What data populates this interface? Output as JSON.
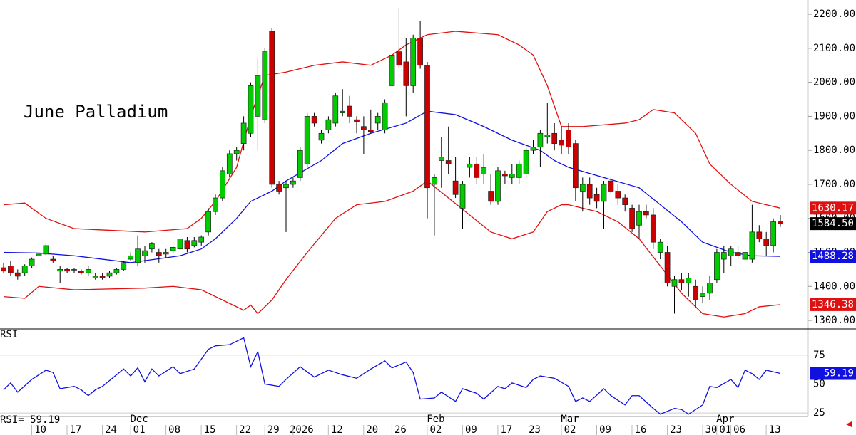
{
  "chart_data": [
    {
      "type": "candlestick",
      "title": "June Palladium",
      "ylim": [
        1275,
        2242
      ],
      "yticks": [
        {
          "value": 1300,
          "label": "1300.00"
        },
        {
          "value": 1400,
          "label": "1400.00"
        },
        {
          "value": 1500,
          "label": "1500.00"
        },
        {
          "value": 1600,
          "label": "1600.00"
        },
        {
          "value": 1700,
          "label": "1700.00"
        },
        {
          "value": 1800,
          "label": "1800.00"
        },
        {
          "value": 1900,
          "label": "1900.00"
        },
        {
          "value": 2000,
          "label": "2000.00"
        },
        {
          "value": 2100,
          "label": "2100.00"
        },
        {
          "value": 2200,
          "label": "2200.00"
        }
      ],
      "up_color": "#00cc00",
      "down_color": "#cc0000",
      "candles": [
        [
          1455,
          1470,
          1440,
          1445
        ],
        [
          1460,
          1475,
          1430,
          1440
        ],
        [
          1440,
          1450,
          1420,
          1430
        ],
        [
          1440,
          1465,
          1430,
          1460
        ],
        [
          1460,
          1485,
          1455,
          1480
        ],
        [
          1490,
          1500,
          1480,
          1495
        ],
        [
          1495,
          1525,
          1490,
          1520
        ],
        [
          1480,
          1490,
          1470,
          1475
        ],
        [
          1445,
          1460,
          1410,
          1450
        ],
        [
          1450,
          1455,
          1440,
          1445
        ],
        [
          1448,
          1455,
          1440,
          1450
        ],
        [
          1445,
          1450,
          1435,
          1440
        ],
        [
          1440,
          1460,
          1430,
          1450
        ],
        [
          1425,
          1440,
          1420,
          1430
        ],
        [
          1430,
          1440,
          1420,
          1425
        ],
        [
          1430,
          1445,
          1425,
          1440
        ],
        [
          1440,
          1455,
          1435,
          1450
        ],
        [
          1450,
          1475,
          1445,
          1470
        ],
        [
          1480,
          1500,
          1475,
          1490
        ],
        [
          1470,
          1550,
          1460,
          1510
        ],
        [
          1490,
          1520,
          1470,
          1505
        ],
        [
          1510,
          1530,
          1500,
          1525
        ],
        [
          1500,
          1510,
          1470,
          1490
        ],
        [
          1495,
          1510,
          1485,
          1500
        ],
        [
          1505,
          1520,
          1495,
          1515
        ],
        [
          1510,
          1545,
          1505,
          1540
        ],
        [
          1535,
          1545,
          1500,
          1510
        ],
        [
          1520,
          1545,
          1515,
          1535
        ],
        [
          1530,
          1550,
          1520,
          1545
        ],
        [
          1560,
          1630,
          1550,
          1620
        ],
        [
          1620,
          1670,
          1610,
          1660
        ],
        [
          1660,
          1750,
          1650,
          1740
        ],
        [
          1730,
          1800,
          1720,
          1790
        ],
        [
          1790,
          1810,
          1770,
          1800
        ],
        [
          1820,
          1900,
          1800,
          1880
        ],
        [
          1850,
          2000,
          1840,
          1990
        ],
        [
          1900,
          2070,
          1800,
          2020
        ],
        [
          1890,
          2100,
          1880,
          2090
        ],
        [
          2150,
          2160,
          1690,
          1700
        ],
        [
          1700,
          1710,
          1670,
          1680
        ],
        [
          1690,
          1710,
          1560,
          1700
        ],
        [
          1700,
          1720,
          1690,
          1710
        ],
        [
          1720,
          1810,
          1710,
          1800
        ],
        [
          1760,
          1910,
          1750,
          1900
        ],
        [
          1900,
          1910,
          1870,
          1880
        ],
        [
          1830,
          1860,
          1820,
          1850
        ],
        [
          1860,
          1900,
          1850,
          1890
        ],
        [
          1880,
          1970,
          1870,
          1960
        ],
        [
          1910,
          1980,
          1900,
          1915
        ],
        [
          1930,
          1960,
          1880,
          1900
        ],
        [
          1890,
          1900,
          1850,
          1885
        ],
        [
          1870,
          1900,
          1790,
          1860
        ],
        [
          1860,
          1920,
          1850,
          1855
        ],
        [
          1880,
          1910,
          1860,
          1900
        ],
        [
          1860,
          1950,
          1850,
          1940
        ],
        [
          1990,
          2090,
          1970,
          2080
        ],
        [
          2090,
          2220,
          2040,
          2050
        ],
        [
          2060,
          2130,
          1900,
          1990
        ],
        [
          1990,
          2140,
          1970,
          2130
        ],
        [
          2130,
          2180,
          2040,
          2050
        ],
        [
          2050,
          2060,
          1600,
          1690
        ],
        [
          1700,
          1730,
          1550,
          1720
        ],
        [
          1770,
          1840,
          1690,
          1780
        ],
        [
          1770,
          1870,
          1730,
          1760
        ],
        [
          1710,
          1780,
          1660,
          1670
        ],
        [
          1630,
          1710,
          1570,
          1700
        ],
        [
          1750,
          1780,
          1720,
          1760
        ],
        [
          1760,
          1780,
          1700,
          1720
        ],
        [
          1730,
          1790,
          1700,
          1750
        ],
        [
          1680,
          1730,
          1640,
          1650
        ],
        [
          1650,
          1750,
          1640,
          1740
        ],
        [
          1730,
          1740,
          1700,
          1725
        ],
        [
          1720,
          1760,
          1700,
          1730
        ],
        [
          1720,
          1770,
          1700,
          1760
        ],
        [
          1730,
          1810,
          1720,
          1800
        ],
        [
          1800,
          1830,
          1790,
          1810
        ],
        [
          1810,
          1860,
          1750,
          1850
        ],
        [
          1840,
          1940,
          1820,
          1845
        ],
        [
          1850,
          1880,
          1800,
          1820
        ],
        [
          1830,
          1870,
          1790,
          1815
        ],
        [
          1860,
          1880,
          1790,
          1810
        ],
        [
          1820,
          1830,
          1650,
          1690
        ],
        [
          1680,
          1720,
          1620,
          1700
        ],
        [
          1700,
          1720,
          1640,
          1660
        ],
        [
          1670,
          1690,
          1630,
          1650
        ],
        [
          1650,
          1710,
          1570,
          1700
        ],
        [
          1710,
          1720,
          1670,
          1680
        ],
        [
          1680,
          1700,
          1640,
          1660
        ],
        [
          1660,
          1670,
          1620,
          1640
        ],
        [
          1630,
          1640,
          1560,
          1570
        ],
        [
          1580,
          1640,
          1540,
          1620
        ],
        [
          1620,
          1640,
          1600,
          1610
        ],
        [
          1610,
          1630,
          1510,
          1530
        ],
        [
          1500,
          1540,
          1480,
          1530
        ],
        [
          1500,
          1520,
          1400,
          1410
        ],
        [
          1400,
          1430,
          1320,
          1420
        ],
        [
          1420,
          1440,
          1390,
          1410
        ],
        [
          1410,
          1440,
          1370,
          1425
        ],
        [
          1400,
          1420,
          1340,
          1360
        ],
        [
          1370,
          1400,
          1350,
          1380
        ],
        [
          1380,
          1430,
          1360,
          1410
        ],
        [
          1420,
          1510,
          1410,
          1500
        ],
        [
          1480,
          1520,
          1440,
          1500
        ],
        [
          1490,
          1520,
          1460,
          1510
        ],
        [
          1500,
          1520,
          1480,
          1490
        ],
        [
          1480,
          1510,
          1440,
          1500
        ],
        [
          1480,
          1640,
          1470,
          1560
        ],
        [
          1560,
          1580,
          1530,
          1540
        ],
        [
          1540,
          1560,
          1490,
          1520
        ],
        [
          1520,
          1600,
          1500,
          1590
        ],
        [
          1590,
          1610,
          1575,
          1584.5
        ]
      ],
      "series": [
        {
          "color": "#e01010",
          "x": [
            0,
            3,
            6,
            10,
            15,
            20,
            26,
            28,
            30,
            33,
            35,
            37,
            40,
            44,
            48,
            52,
            55,
            57,
            60,
            64,
            70,
            73,
            75,
            77,
            79,
            82,
            88,
            90,
            92,
            95,
            98,
            100,
            103,
            106,
            108,
            110
          ],
          "values": [
            1640,
            1645,
            1600,
            1570,
            1565,
            1560,
            1570,
            1600,
            1650,
            1750,
            1900,
            2020,
            2030,
            2050,
            2060,
            2050,
            2080,
            2110,
            2140,
            2150,
            2140,
            2110,
            2080,
            1990,
            1870,
            1870,
            1880,
            1890,
            1920,
            1910,
            1850,
            1760,
            1700,
            1650,
            1640,
            1630.17
          ]
        },
        {
          "color": "#1010e0",
          "x": [
            0,
            5,
            10,
            18,
            25,
            28,
            30,
            33,
            35,
            38,
            40,
            45,
            48,
            52,
            57,
            60,
            64,
            68,
            72,
            76,
            78,
            80,
            85,
            90,
            93,
            96,
            99,
            103,
            106,
            110
          ],
          "values": [
            1500,
            1498,
            1490,
            1470,
            1490,
            1510,
            1540,
            1600,
            1650,
            1680,
            1710,
            1770,
            1820,
            1850,
            1880,
            1915,
            1905,
            1870,
            1830,
            1800,
            1770,
            1750,
            1720,
            1690,
            1640,
            1590,
            1530,
            1500,
            1490,
            1488.28
          ]
        },
        {
          "color": "#e01010",
          "x": [
            0,
            3,
            5,
            10,
            20,
            24,
            28,
            31,
            34,
            35,
            36,
            38,
            40,
            43,
            47,
            50,
            54,
            58,
            60,
            63,
            66,
            69,
            72,
            75,
            77,
            79,
            80,
            84,
            87,
            90,
            93,
            96,
            99,
            102,
            105,
            107,
            110
          ],
          "values": [
            1370,
            1365,
            1400,
            1390,
            1395,
            1400,
            1390,
            1360,
            1330,
            1345,
            1320,
            1360,
            1420,
            1500,
            1600,
            1640,
            1650,
            1680,
            1710,
            1660,
            1610,
            1560,
            1540,
            1560,
            1620,
            1640,
            1640,
            1620,
            1590,
            1540,
            1460,
            1380,
            1320,
            1310,
            1320,
            1340,
            1346.38
          ]
        }
      ],
      "price_tags": [
        {
          "value": 1630.17,
          "label": "1630.17",
          "color": "#e01010"
        },
        {
          "value": 1584.5,
          "label": "1584.50",
          "color": "#000000"
        },
        {
          "value": 1488.28,
          "label": "1488.28",
          "color": "#1010e0"
        },
        {
          "value": 1346.38,
          "label": "1346.38",
          "color": "#e01010"
        }
      ],
      "xticks": [
        {
          "value": 5,
          "label": "10"
        },
        {
          "value": 10,
          "label": "17"
        },
        {
          "value": 15,
          "label": "24"
        },
        {
          "value": 19,
          "label": "01"
        },
        {
          "value": 24,
          "label": "08"
        },
        {
          "value": 29,
          "label": "15"
        },
        {
          "value": 34,
          "label": "22"
        },
        {
          "value": 38,
          "label": "29"
        },
        {
          "value": 42,
          "label": "2026"
        },
        {
          "value": 47,
          "label": "12"
        },
        {
          "value": 52,
          "label": "20"
        },
        {
          "value": 56,
          "label": "26"
        },
        {
          "value": 61,
          "label": "02"
        },
        {
          "value": 66,
          "label": "09"
        },
        {
          "value": 71,
          "label": "17"
        },
        {
          "value": 75,
          "label": "23"
        },
        {
          "value": 80,
          "label": "02"
        },
        {
          "value": 85,
          "label": "09"
        },
        {
          "value": 90,
          "label": "16"
        },
        {
          "value": 95,
          "label": "23"
        },
        {
          "value": 100,
          "label": "30"
        },
        {
          "value": 102,
          "label": "01"
        },
        {
          "value": 104,
          "label": "06"
        },
        {
          "value": 109,
          "label": "13"
        }
      ],
      "month_ticks": [
        {
          "value": 19,
          "label": "Dec"
        },
        {
          "value": 61,
          "label": "Feb"
        },
        {
          "value": 80,
          "label": "Mar"
        },
        {
          "value": 102,
          "label": "Apr"
        }
      ]
    },
    {
      "type": "line",
      "title": "RSI",
      "readout": "RSI=  59.19",
      "ylim": [
        22,
        97
      ],
      "yticks": [
        25,
        50,
        75
      ],
      "series": [
        {
          "color": "#1010e0",
          "x": [
            0,
            1,
            2,
            4,
            6,
            7,
            8,
            10,
            11,
            12,
            13,
            14,
            17,
            18,
            19,
            20,
            21,
            22,
            24,
            25,
            27,
            29,
            30,
            32,
            34,
            35,
            36,
            37,
            39,
            40,
            42,
            44,
            46,
            47,
            48,
            50,
            52,
            54,
            55,
            57,
            58,
            59,
            61,
            62,
            64,
            65,
            67,
            68,
            70,
            71,
            72,
            74,
            75,
            76,
            78,
            80,
            81,
            82,
            83,
            85,
            86,
            88,
            89,
            90,
            92,
            93,
            95,
            96,
            97,
            99,
            100,
            101,
            103,
            104,
            105,
            106,
            107,
            108,
            110
          ],
          "values": [
            45,
            51,
            43,
            54,
            62,
            60,
            46,
            48,
            45,
            40,
            45,
            48,
            63,
            57,
            64,
            52,
            63,
            57,
            65,
            59,
            63,
            80,
            83,
            84,
            90,
            65,
            78,
            50,
            48,
            54,
            65,
            56,
            62,
            60,
            58,
            55,
            63,
            70,
            64,
            69,
            60,
            37,
            38,
            43,
            35,
            46,
            42,
            37,
            48,
            46,
            51,
            47,
            54,
            57,
            55,
            48,
            35,
            38,
            35,
            46,
            40,
            32,
            40,
            40,
            29,
            24,
            29,
            28,
            24,
            32,
            48,
            47,
            54,
            47,
            62,
            59,
            54,
            62,
            59.19
          ]
        }
      ],
      "price_tags": [
        {
          "value": 59.19,
          "color": "#1010e0"
        }
      ]
    }
  ]
}
